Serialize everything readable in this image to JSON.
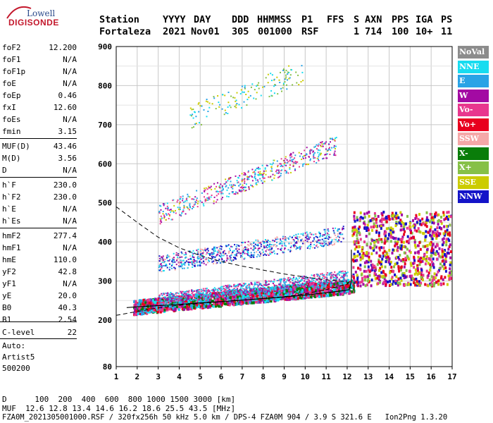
{
  "logo": {
    "top": "Lowell",
    "bottom": "DIGISONDE"
  },
  "header": {
    "line1": [
      "Station",
      "YYYY",
      "DAY",
      "DDD",
      "HHMMSS",
      "P1",
      "FFS",
      "S",
      "AXN",
      "PPS",
      "IGA",
      "PS"
    ],
    "line2": [
      "Fortaleza",
      "2021",
      "Nov01",
      "305",
      "001000",
      "RSF",
      "1",
      "714",
      "100",
      "10+",
      "11"
    ]
  },
  "params": [
    {
      "k": "foF2",
      "v": "12.200"
    },
    {
      "k": "foF1",
      "v": "N/A"
    },
    {
      "k": "foF1p",
      "v": "N/A"
    },
    {
      "k": "foE",
      "v": "N/A"
    },
    {
      "k": "foEp",
      "v": "0.46"
    },
    {
      "k": "fxI",
      "v": "12.60"
    },
    {
      "k": "foEs",
      "v": "N/A"
    },
    {
      "k": "fmin",
      "v": "3.15"
    },
    {
      "k": "MUF(D)",
      "v": "43.46"
    },
    {
      "k": "M(D)",
      "v": "3.56"
    },
    {
      "k": "D",
      "v": "N/A"
    },
    {
      "k": "h`F",
      "v": "230.0"
    },
    {
      "k": "h`F2",
      "v": "230.0"
    },
    {
      "k": "h`E",
      "v": "N/A"
    },
    {
      "k": "h`Es",
      "v": "N/A"
    },
    {
      "k": "hmF2",
      "v": "277.4"
    },
    {
      "k": "hmF1",
      "v": "N/A"
    },
    {
      "k": "hmE",
      "v": "110.0"
    },
    {
      "k": "yF2",
      "v": "42.8"
    },
    {
      "k": "yF1",
      "v": "N/A"
    },
    {
      "k": "yE",
      "v": "20.0"
    },
    {
      "k": "B0",
      "v": "40.3"
    },
    {
      "k": "B1",
      "v": "2.54"
    },
    {
      "k": "C-level",
      "v": "22"
    }
  ],
  "autoscale": {
    "line1": "Auto:",
    "line2": "Artist5",
    "line3": "500200"
  },
  "footer": {
    "d_line": "D      100  200  400  600  800 1000 1500 3000 [km]",
    "muf_line": "MUF  12.6 12.8 13.4 14.6 16.2 18.6 25.5 43.5 [MHz]",
    "info_line": "FZA0M_2021305001000.RSF / 320fx256h 50 kHz 5.0 km / DPS-4 FZA0M 904 / 3.9 S 321.6 E   Ion2Png 1.3.20"
  },
  "legend": [
    {
      "label": "NoVal",
      "color": "#8c8c8c"
    },
    {
      "label": "NNE",
      "color": "#18dcf0"
    },
    {
      "label": "E",
      "color": "#2aa3e6"
    },
    {
      "label": "W",
      "color": "#a30aa3"
    },
    {
      "label": "Vo-",
      "color": "#e8378e"
    },
    {
      "label": "Vo+",
      "color": "#e8001e"
    },
    {
      "label": "SSW",
      "color": "#f5a8a8"
    },
    {
      "label": "X-",
      "color": "#0a7d0a"
    },
    {
      "label": "X+",
      "color": "#86c047"
    },
    {
      "label": "SSE",
      "color": "#cccc00"
    },
    {
      "label": "NNW",
      "color": "#1414c8"
    }
  ],
  "chart_data": {
    "type": "scatter",
    "x_label": "",
    "y_label": "",
    "x_range": [
      1,
      17
    ],
    "y_range": [
      80,
      900
    ],
    "x_ticks": [
      "1",
      "2",
      "3",
      "4",
      "5",
      "6",
      "7",
      "8",
      "9",
      "10",
      "11",
      "12",
      "13",
      "14",
      "15",
      "16",
      "17"
    ],
    "y_ticks": [
      "80",
      "200",
      "300",
      "400",
      "500",
      "600",
      "700",
      "800",
      "900"
    ],
    "grid": true,
    "legend_position": "right",
    "traces": [
      {
        "freq_range": [
          1.8,
          12.3
        ],
        "h_start": 235,
        "h_end": 290,
        "spread": 18,
        "colors": [
          "#e8001e",
          "#e8378e",
          "#a30aa3",
          "#2aa3e6",
          "#18dcf0",
          "#0a7d0a"
        ],
        "density": 3.2
      },
      {
        "freq_range": [
          3.0,
          12.0
        ],
        "h_start": 255,
        "h_end": 315,
        "spread": 14,
        "colors": [
          "#a30aa3",
          "#2aa3e6",
          "#e8378e",
          "#18dcf0"
        ],
        "density": 1.6
      },
      {
        "freq_range": [
          3.0,
          11.8
        ],
        "h_start": 345,
        "h_end": 420,
        "spread": 22,
        "colors": [
          "#a30aa3",
          "#2aa3e6",
          "#18dcf0",
          "#f5a8a8",
          "#1414c8"
        ],
        "density": 1.5
      },
      {
        "freq_range": [
          3.0,
          11.5
        ],
        "h_start": 470,
        "h_end": 650,
        "spread": 25,
        "colors": [
          "#a30aa3",
          "#2aa3e6",
          "#cccc00",
          "#e8378e",
          "#18dcf0"
        ],
        "density": 1.0
      },
      {
        "freq_range": [
          4.5,
          10.0
        ],
        "h_start": 720,
        "h_end": 840,
        "spread": 30,
        "colors": [
          "#18dcf0",
          "#2aa3e6",
          "#cccc00",
          "#86c047"
        ],
        "density": 0.45
      },
      {
        "freq_range": [
          12.2,
          16.9
        ],
        "h_start": 290,
        "h_end": 480,
        "spread": 0,
        "colors": [
          "#1414c8",
          "#e8001e",
          "#cccc00",
          "#a30aa3",
          "#86c047",
          "#e8378e"
        ],
        "density": 3.0
      }
    ],
    "lower_dashed_curve": [
      [
        1.0,
        212
      ],
      [
        2.0,
        222
      ],
      [
        3.0,
        231
      ],
      [
        4.0,
        238
      ],
      [
        5.0,
        243
      ],
      [
        6.0,
        247
      ],
      [
        7.0,
        251
      ],
      [
        8.0,
        255
      ],
      [
        9.0,
        260
      ],
      [
        10.0,
        267
      ],
      [
        11.0,
        278
      ],
      [
        12.0,
        292
      ],
      [
        12.2,
        305
      ]
    ],
    "upper_dashed_curve": [
      [
        1.0,
        490
      ],
      [
        1.5,
        470
      ],
      [
        2.0,
        450
      ],
      [
        3.0,
        412
      ],
      [
        4.0,
        385
      ],
      [
        5.0,
        365
      ],
      [
        6.0,
        350
      ],
      [
        7.0,
        338
      ],
      [
        8.0,
        328
      ],
      [
        9.0,
        318
      ],
      [
        10.0,
        310
      ],
      [
        11.0,
        303
      ],
      [
        12.0,
        298
      ]
    ],
    "solid_profile": [
      [
        1.5,
        232
      ],
      [
        2.0,
        234
      ],
      [
        3.0,
        237
      ],
      [
        4.0,
        240
      ],
      [
        5.0,
        244
      ],
      [
        6.0,
        247
      ],
      [
        7.0,
        251
      ],
      [
        8.0,
        255
      ],
      [
        9.0,
        259
      ],
      [
        10.0,
        264
      ],
      [
        11.0,
        270
      ],
      [
        11.8,
        275
      ],
      [
        12.1,
        278
      ],
      [
        12.2,
        300
      ],
      [
        12.2,
        380
      ]
    ]
  }
}
